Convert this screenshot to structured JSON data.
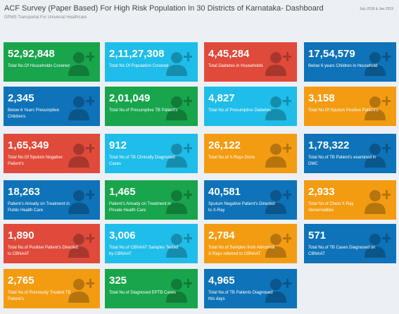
{
  "header": {
    "title": "ACF Survey (Paper Based) For High Risk Population In 30 Districts of Karnataka- Dashboard",
    "subtitle": "GPMS Transportal For Universal Healthcare",
    "date": "July 2018 & Jan 2019"
  },
  "tiles": [
    {
      "value": "52,92,848",
      "label": "Total No.Of Households Covered",
      "color": "#18a54c"
    },
    {
      "value": "2,11,27,308",
      "label": "Total No.Of Population Covered",
      "color": "#1fbde9"
    },
    {
      "value": "4,45,284",
      "label": "Total Diabetes in Households",
      "color": "#e04a3b"
    },
    {
      "value": "17,54,579",
      "label": "Below 6 years Children in Household",
      "color": "#0e73b8"
    },
    {
      "value": "2,345",
      "label": "Below 6 Years Presumptive Childrens",
      "color": "#0e73b8"
    },
    {
      "value": "2,01,049",
      "label": "Total No.of Presumptive TB Patient's",
      "color": "#18a54c"
    },
    {
      "value": "4,827",
      "label": "Total No.of Presumptive Diabetes",
      "color": "#1fbde9"
    },
    {
      "value": "3,158",
      "label": "Total No.Of Sputum Positive Patient's",
      "color": "#f39c12"
    },
    {
      "value": "1,65,349",
      "label": "Total No.Of Sputum Negative Patient's",
      "color": "#e04a3b"
    },
    {
      "value": "912",
      "label": "Total No.of TB Clinically Diagnosed Cases",
      "color": "#1fbde9"
    },
    {
      "value": "26,122",
      "label": "Total No.of X-Rays Done",
      "color": "#f39c12"
    },
    {
      "value": "1,78,322",
      "label": "Total No.of TB Patient's examined in DMC",
      "color": "#0e73b8"
    },
    {
      "value": "18,263",
      "label": "Patient's Already on Treatment in Public Health Care",
      "color": "#0e73b8"
    },
    {
      "value": "1,465",
      "label": "Patient's Already on Treatment in Private Health Care",
      "color": "#18a54c"
    },
    {
      "value": "40,581",
      "label": "Sputum Negative Patient's Directed to X-Ray",
      "color": "#0e73b8"
    },
    {
      "value": "2,933",
      "label": "Total No.of Chest X-Ray Abnormalities",
      "color": "#f39c12"
    },
    {
      "value": "1,890",
      "label": "Total No.of Positive Patient's Directed to CBNAAT",
      "color": "#e04a3b"
    },
    {
      "value": "3,006",
      "label": "Total No.of CBNAAT Samples Tested by CBNAAT",
      "color": "#1fbde9"
    },
    {
      "value": "2,784",
      "label": "Total No.of Samples from Abnormal X-Rays referred to CBNAAT",
      "color": "#f39c12"
    },
    {
      "value": "571",
      "label": "Total No.of TB Cases Diagnosed on CBNAAT",
      "color": "#0e73b8"
    },
    {
      "value": "2,765",
      "label": "Total No.of Previously Treated TB Patient's",
      "color": "#f39c12"
    },
    {
      "value": "325",
      "label": "Total No.of Diagnosed EPTB Cases",
      "color": "#18a54c"
    },
    {
      "value": "4,965",
      "label": "Total No.of TB Patients Diagnosed this days",
      "color": "#0e73b8"
    }
  ]
}
